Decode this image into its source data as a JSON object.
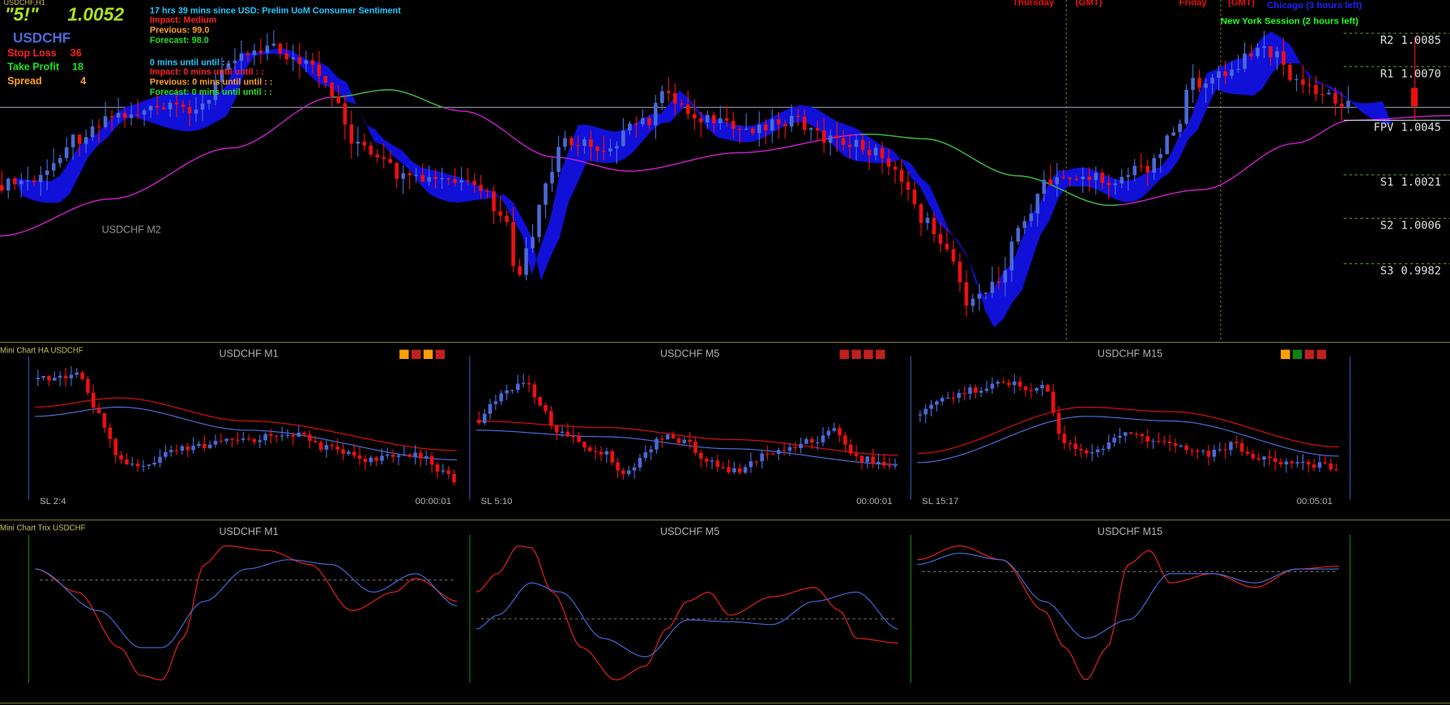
{
  "header": {
    "symbol_timeframe": "USDCHF,H1",
    "signal": "\"5!\"",
    "price": "1.0052",
    "symbol": "USDCHF"
  },
  "trade_info": [
    {
      "label": "Stop Loss",
      "value": "36"
    },
    {
      "label": "Take Profit",
      "value": "18"
    },
    {
      "label": "Spread",
      "value": "4"
    }
  ],
  "news": [
    "17 hrs 39 mins since USD: Prelim UoM Consumer Sentiment",
    "Impact: Medium",
    "Previous: 99.0",
    "Forecast: 98.0",
    "0 mins until until : :",
    "Impact: 0 mins until until : :",
    "Previous: 0 mins until until : :",
    "Forecast: 0 mins until until : :"
  ],
  "sessions": {
    "day1": "Thursday",
    "day1_tz": "(GMT)",
    "day2": "Friday",
    "day2_tz": "(GMT)",
    "chicago": "Chicago (3 hours left)",
    "new_york": "New York Session (2 hours left)"
  },
  "pivots": [
    {
      "label": "R2",
      "value": "1.0085"
    },
    {
      "label": "R1",
      "value": "1.0070"
    },
    {
      "label": "FPV",
      "value": "1.0045"
    },
    {
      "label": "S1",
      "value": "1.0021"
    },
    {
      "label": "S2",
      "value": "1.0006"
    },
    {
      "label": "S3",
      "value": "0.9982"
    }
  ],
  "main_chart_label": "USDCHF M2",
  "ha_panel": {
    "title": "Mini Chart HA USDCHF",
    "charts": [
      {
        "title": "USDCHF M1",
        "sl": "SL 2:4",
        "timer": "00:00:01"
      },
      {
        "title": "USDCHF M5",
        "sl": "SL 5:10",
        "timer": "00:00:01"
      },
      {
        "title": "USDCHF M15",
        "sl": "SL 15:17",
        "timer": "00:05:01"
      }
    ]
  },
  "trix_panel": {
    "title": "Mini Chart Trix USDCHF",
    "charts": [
      {
        "title": "USDCHF M1"
      },
      {
        "title": "USDCHF M5"
      },
      {
        "title": "USDCHF M15"
      }
    ]
  }
}
